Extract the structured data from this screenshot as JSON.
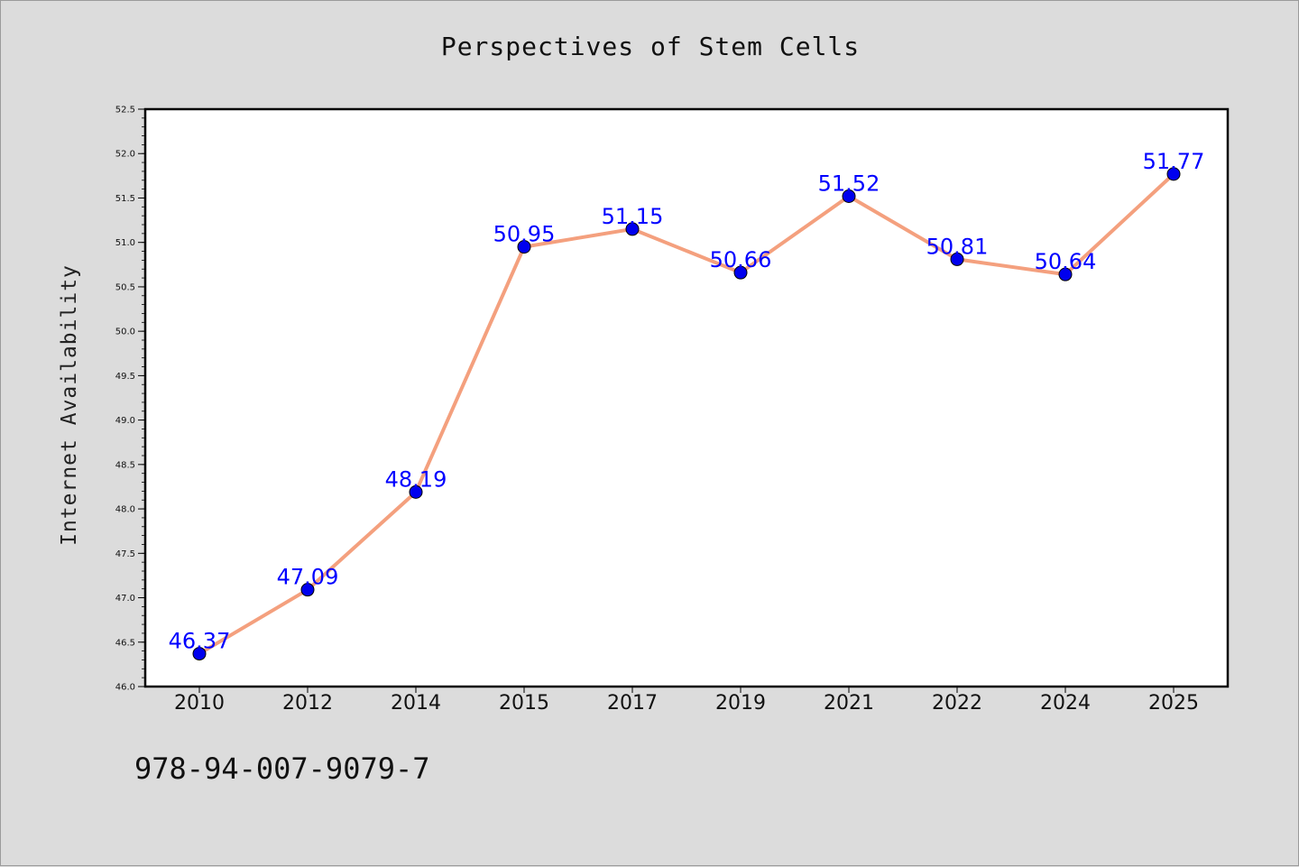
{
  "title": "Perspectives of Stem Cells",
  "footer_text": "978-94-007-9079-7",
  "colors": {
    "background": "#dcdcdc",
    "plot_background": "#ffffff",
    "line": "#f4a07e",
    "marker": "#0000ee",
    "label": "#0000ff"
  },
  "chart_data": {
    "type": "line",
    "title": "Perspectives of Stem Cells",
    "xlabel": "",
    "ylabel": "Internet Availability",
    "categories": [
      "2010",
      "2012",
      "2014",
      "2015",
      "2017",
      "2019",
      "2021",
      "2022",
      "2024",
      "2025"
    ],
    "series": [
      {
        "values": [
          46.37,
          47.09,
          48.19,
          50.95,
          51.15,
          50.66,
          51.52,
          50.81,
          50.64,
          51.77
        ]
      }
    ],
    "data_labels": [
      "46.37",
      "47.09",
      "48.19",
      "50.95",
      "51.15",
      "50.66",
      "51.52",
      "50.81",
      "50.64",
      "51.77"
    ],
    "ylim": [
      46.0,
      52.5
    ],
    "yticks": [
      "46.0",
      "46.5",
      "47.0",
      "47.5",
      "48.0",
      "48.5",
      "49.0",
      "49.5",
      "50.0",
      "50.5",
      "51.0",
      "51.5",
      "52.0",
      "52.5"
    ],
    "grid": false,
    "legend": "none"
  }
}
